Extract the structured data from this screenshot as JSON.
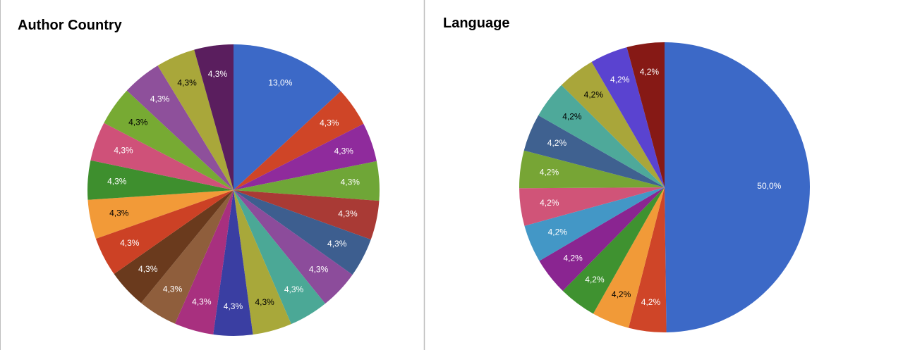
{
  "chart_data": [
    {
      "type": "pie",
      "title": "Author Country",
      "values": [
        13.0,
        4.3,
        4.3,
        4.3,
        4.3,
        4.3,
        4.3,
        4.3,
        4.3,
        4.3,
        4.3,
        4.3,
        4.3,
        4.3,
        4.3,
        4.3,
        4.3,
        4.3,
        4.3,
        4.3,
        4.3
      ],
      "value_labels": [
        "13,0%",
        "4,3%",
        "4,3%",
        "4,3%",
        "4,3%",
        "4,3%",
        "4,3%",
        "4,3%",
        "4,3%",
        "4,3%",
        "4,3%",
        "4,3%",
        "4,3%",
        "4,3%",
        "4,3%",
        "4,3%",
        "4,3%",
        "4,3%",
        "4,3%",
        "4,3%",
        "4,3%"
      ],
      "colors": [
        "#3c69c7",
        "#cf4527",
        "#8f2b9c",
        "#6fa637",
        "#a93a35",
        "#3d5e8f",
        "#8c4c9b",
        "#4ba896",
        "#a8a83a",
        "#3a3ea2",
        "#a8307f",
        "#8f5e3c",
        "#6a3a1d",
        "#cc4125",
        "#f29a38",
        "#3e8f2e",
        "#cf5179",
        "#77aa33",
        "#8e509b",
        "#a9a73a",
        "#5a1e5e"
      ]
    },
    {
      "type": "pie",
      "title": "Language",
      "values": [
        50.0,
        4.2,
        4.2,
        4.2,
        4.2,
        4.2,
        4.2,
        4.2,
        4.2,
        4.2,
        4.2,
        4.2,
        4.2
      ],
      "value_labels": [
        "50,0%",
        "4,2%",
        "4,2%",
        "4,2%",
        "4,2%",
        "4,2%",
        "4,2%",
        "4,2%",
        "4,2%",
        "4,2%",
        "4,2%",
        "4,2%",
        "4,2%"
      ],
      "colors": [
        "#3c69c7",
        "#cf4528",
        "#f19a38",
        "#3f9230",
        "#8a2591",
        "#4397c6",
        "#d05478",
        "#77a535",
        "#3f6190",
        "#4ea99a",
        "#a9a63a",
        "#5a43d0",
        "#861915"
      ]
    }
  ]
}
